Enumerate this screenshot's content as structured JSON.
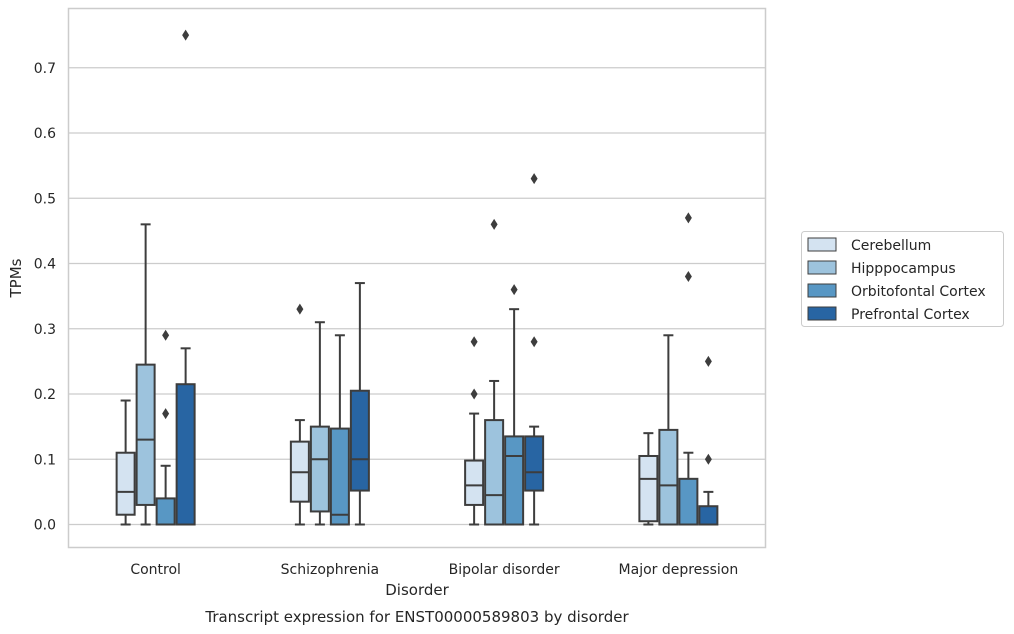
{
  "chart_data": {
    "type": "box",
    "title": "Transcript expression for ENST00000589803 by disorder",
    "xlabel": "Disorder",
    "ylabel": "TPMs",
    "ylim": [
      -0.036,
      0.788
    ],
    "yticks": [
      0.0,
      0.1,
      0.2,
      0.3,
      0.4,
      0.5,
      0.6,
      0.7
    ],
    "yticklabels": [
      "0.0",
      "0.1",
      "0.2",
      "0.3",
      "0.4",
      "0.5",
      "0.6",
      "0.7"
    ],
    "grid": true,
    "legend_position": "right",
    "categories": [
      "Control",
      "Schizophrenia",
      "Bipolar disorder",
      "Major depression"
    ],
    "series": [
      {
        "name": "Cerebellum",
        "color": "#d4e3f1",
        "boxes": [
          {
            "whislo": 0.0,
            "q1": 0.015,
            "med": 0.05,
            "q3": 0.11,
            "whishi": 0.19,
            "fliers": []
          },
          {
            "whislo": 0.0,
            "q1": 0.035,
            "med": 0.08,
            "q3": 0.127,
            "whishi": 0.16,
            "fliers": [
              0.33
            ]
          },
          {
            "whislo": 0.0,
            "q1": 0.03,
            "med": 0.06,
            "q3": 0.098,
            "whishi": 0.17,
            "fliers": [
              0.2,
              0.28
            ]
          },
          {
            "whislo": 0.0,
            "q1": 0.005,
            "med": 0.07,
            "q3": 0.105,
            "whishi": 0.14,
            "fliers": []
          }
        ]
      },
      {
        "name": "Hipppocampus",
        "color": "#9dc3dd",
        "boxes": [
          {
            "whislo": 0.0,
            "q1": 0.03,
            "med": 0.13,
            "q3": 0.245,
            "whishi": 0.46,
            "fliers": []
          },
          {
            "whislo": 0.0,
            "q1": 0.02,
            "med": 0.1,
            "q3": 0.15,
            "whishi": 0.31,
            "fliers": []
          },
          {
            "whislo": 0.0,
            "q1": 0.0,
            "med": 0.045,
            "q3": 0.16,
            "whishi": 0.22,
            "fliers": [
              0.46
            ]
          },
          {
            "whislo": 0.0,
            "q1": 0.0,
            "med": 0.06,
            "q3": 0.145,
            "whishi": 0.29,
            "fliers": []
          }
        ]
      },
      {
        "name": "Orbitofontal Cortex",
        "color": "#5897c4",
        "boxes": [
          {
            "whislo": 0.0,
            "q1": 0.0,
            "med": 0.0,
            "q3": 0.04,
            "whishi": 0.09,
            "fliers": [
              0.17,
              0.29
            ]
          },
          {
            "whislo": 0.0,
            "q1": 0.0,
            "med": 0.015,
            "q3": 0.147,
            "whishi": 0.29,
            "fliers": []
          },
          {
            "whislo": 0.0,
            "q1": 0.0,
            "med": 0.105,
            "q3": 0.135,
            "whishi": 0.33,
            "fliers": [
              0.36
            ]
          },
          {
            "whislo": 0.0,
            "q1": 0.0,
            "med": 0.0,
            "q3": 0.07,
            "whishi": 0.11,
            "fliers": [
              0.38,
              0.47
            ]
          }
        ]
      },
      {
        "name": "Prefrontal Cortex",
        "color": "#2865a3",
        "boxes": [
          {
            "whislo": 0.0,
            "q1": 0.0,
            "med": 0.0,
            "q3": 0.215,
            "whishi": 0.27,
            "fliers": [
              0.75
            ]
          },
          {
            "whislo": 0.0,
            "q1": 0.052,
            "med": 0.1,
            "q3": 0.205,
            "whishi": 0.37,
            "fliers": []
          },
          {
            "whislo": 0.0,
            "q1": 0.052,
            "med": 0.08,
            "q3": 0.135,
            "whishi": 0.15,
            "fliers": [
              0.28,
              0.53
            ]
          },
          {
            "whislo": 0.0,
            "q1": 0.0,
            "med": 0.0,
            "q3": 0.028,
            "whishi": 0.05,
            "fliers": [
              0.1,
              0.25
            ]
          }
        ]
      }
    ]
  }
}
